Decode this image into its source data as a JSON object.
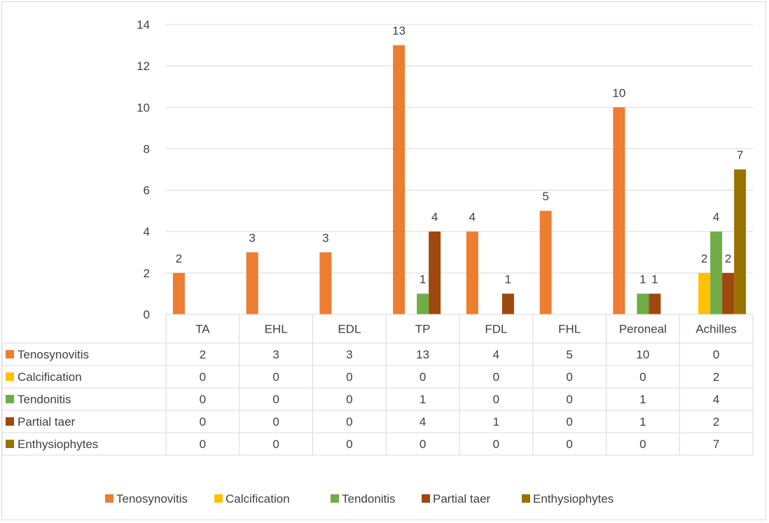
{
  "chart_data": {
    "type": "bar",
    "categories": [
      "TA",
      "EHL",
      "EDL",
      "TP",
      "FDL",
      "FHL",
      "Peroneal",
      "Achilles"
    ],
    "series": [
      {
        "name": "Tenosynovitis",
        "color": "#ED7D31",
        "values": [
          2,
          3,
          3,
          13,
          4,
          5,
          10,
          0
        ]
      },
      {
        "name": "Calcification",
        "color": "#FFC000",
        "values": [
          0,
          0,
          0,
          0,
          0,
          0,
          0,
          2
        ]
      },
      {
        "name": "Tendonitis",
        "color": "#70AD47",
        "values": [
          0,
          0,
          0,
          1,
          0,
          0,
          1,
          4
        ]
      },
      {
        "name": "Partial taer",
        "color": "#9E480E",
        "values": [
          0,
          0,
          0,
          4,
          1,
          0,
          1,
          2
        ]
      },
      {
        "name": "Enthysiophytes",
        "color": "#997300",
        "values": [
          0,
          0,
          0,
          0,
          0,
          0,
          0,
          7
        ]
      }
    ],
    "ylim": [
      0,
      14
    ],
    "yticks": [
      0,
      2,
      4,
      6,
      8,
      10,
      12,
      14
    ],
    "grid": true,
    "data_table": true,
    "legend_position": "bottom",
    "title": "",
    "xlabel": "",
    "ylabel": ""
  }
}
